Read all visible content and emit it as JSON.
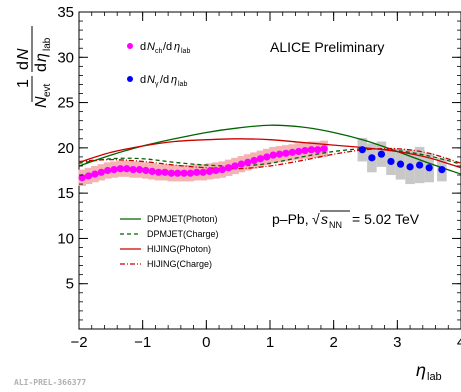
{
  "chart_data": {
    "type": "scatter",
    "title": "",
    "annotation_top": "ALICE Preliminary",
    "annotation_system": "p–Pb, √s_NN = 5.02 TeV",
    "xlim": [
      -2,
      4
    ],
    "ylim": [
      0,
      35
    ],
    "x_ticks": [
      -2,
      -1,
      0,
      1,
      2,
      3,
      4
    ],
    "x_tick_labels": [
      "−2",
      "−1",
      "0",
      "1",
      "2",
      "3",
      "4"
    ],
    "y_ticks": [
      5,
      10,
      15,
      20,
      25,
      30,
      35
    ],
    "y_tick_labels": [
      "5",
      "10",
      "15",
      "20",
      "25",
      "30",
      "35"
    ],
    "xlabel": "η_lab",
    "ylabel": "1/N_evt dN/dη_lab",
    "legend_markers": [
      {
        "label": "dN_ch/dη_lab",
        "color": "#ff00ff"
      },
      {
        "label": "dN_γ/dη_lab",
        "color": "#0000ff"
      }
    ],
    "legend_lines": [
      {
        "label": "DPMJET(Photon)",
        "color": "#006400",
        "dash": "solid"
      },
      {
        "label": "DPMJET(Charge)",
        "color": "#006400",
        "dash": "dashed"
      },
      {
        "label": "HIJING(Photon)",
        "color": "#cc0000",
        "dash": "solid"
      },
      {
        "label": "HIJING(Charge)",
        "color": "#cc0000",
        "dash": "dotdash"
      }
    ],
    "charged_series": {
      "name": "dN_ch/dη_lab",
      "color": "#ff00ff",
      "x": [
        -1.95,
        -1.85,
        -1.75,
        -1.65,
        -1.55,
        -1.45,
        -1.35,
        -1.25,
        -1.15,
        -1.05,
        -0.95,
        -0.85,
        -0.75,
        -0.65,
        -0.55,
        -0.45,
        -0.35,
        -0.25,
        -0.15,
        -0.05,
        0.05,
        0.15,
        0.25,
        0.35,
        0.45,
        0.55,
        0.65,
        0.75,
        0.85,
        0.95,
        1.05,
        1.15,
        1.25,
        1.35,
        1.45,
        1.55,
        1.65,
        1.75,
        1.85
      ],
      "y": [
        16.7,
        16.9,
        17.1,
        17.3,
        17.5,
        17.6,
        17.7,
        17.7,
        17.6,
        17.6,
        17.5,
        17.4,
        17.3,
        17.3,
        17.2,
        17.2,
        17.2,
        17.2,
        17.3,
        17.3,
        17.4,
        17.5,
        17.6,
        17.8,
        18.0,
        18.2,
        18.4,
        18.6,
        18.8,
        19.0,
        19.2,
        19.3,
        19.4,
        19.5,
        19.6,
        19.7,
        19.8,
        19.8,
        19.9
      ],
      "syst": 0.9
    },
    "photon_series": {
      "name": "dN_γ/dη_lab",
      "color": "#0000ff",
      "x": [
        2.45,
        2.6,
        2.75,
        2.9,
        3.05,
        3.2,
        3.35,
        3.5,
        3.7
      ],
      "y": [
        19.8,
        18.9,
        19.3,
        18.5,
        18.2,
        17.9,
        18.1,
        17.8,
        17.6
      ],
      "syst": [
        1.3,
        1.6,
        1.4,
        1.5,
        1.7,
        1.9,
        2.0,
        1.6,
        1.3
      ]
    },
    "model_curves": {
      "x": [
        -2.0,
        -1.5,
        -1.0,
        -0.5,
        0.0,
        0.5,
        1.0,
        1.5,
        2.0,
        2.5,
        3.0,
        3.5,
        4.0
      ],
      "dpmjet_photon": [
        18.0,
        19.2,
        20.2,
        21.0,
        21.7,
        22.2,
        22.5,
        22.3,
        21.7,
        20.8,
        19.6,
        18.3,
        17.1
      ],
      "dpmjet_charge": [
        18.3,
        18.8,
        18.8,
        18.4,
        18.1,
        18.0,
        18.3,
        19.0,
        19.6,
        19.9,
        19.7,
        19.1,
        18.2
      ],
      "hijing_photon": [
        18.4,
        19.5,
        20.2,
        20.7,
        20.9,
        21.0,
        20.9,
        20.6,
        20.3,
        20.0,
        19.6,
        18.9,
        17.8
      ],
      "hijing_charge": [
        18.5,
        18.7,
        18.5,
        18.1,
        17.8,
        17.7,
        18.0,
        18.6,
        19.3,
        19.8,
        19.9,
        19.4,
        18.3
      ]
    },
    "grid": false,
    "legend_placement": "left"
  },
  "footer_label": "ALI-PREL-366377"
}
